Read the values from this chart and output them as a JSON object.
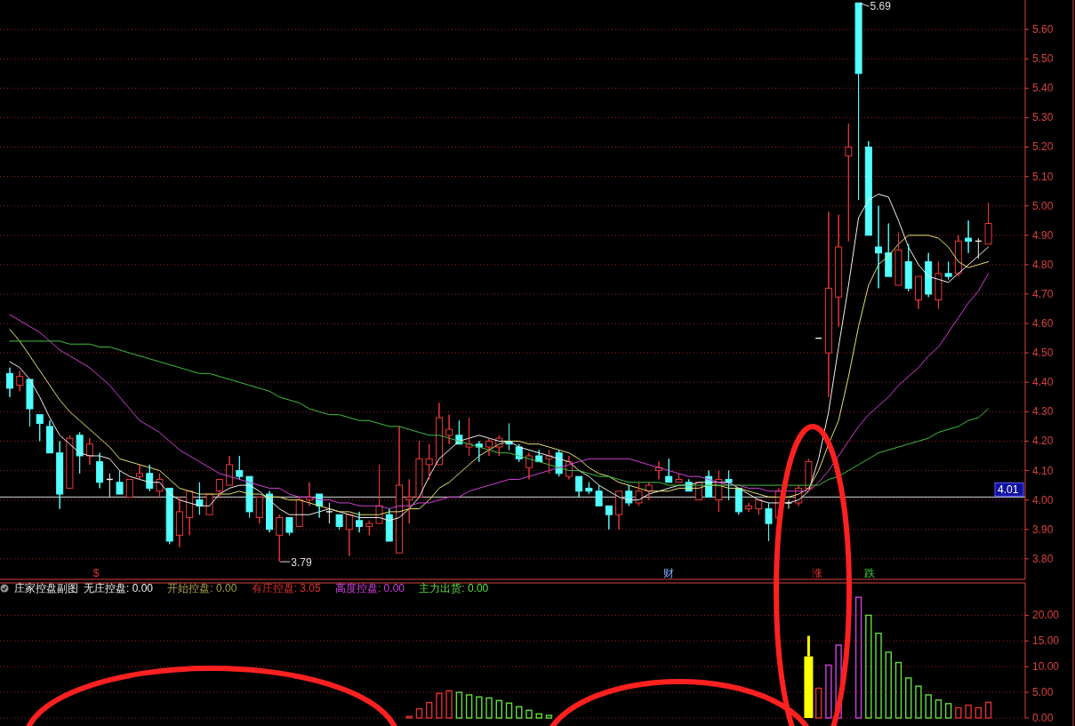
{
  "chart_data": [
    {
      "type": "candlestick",
      "categories": [
        null,
        null,
        null,
        null,
        null,
        null,
        null,
        null,
        null,
        null,
        null,
        null,
        null,
        null,
        null,
        null,
        null,
        null,
        null,
        null,
        null,
        null,
        null,
        null,
        null,
        null,
        null,
        null,
        null,
        null,
        null,
        null,
        null,
        null,
        null,
        null,
        null,
        null,
        null,
        null,
        null,
        null,
        null,
        null,
        null,
        null,
        null,
        null,
        null,
        null,
        null,
        null,
        null,
        null,
        null,
        null,
        null,
        null,
        null,
        null,
        null,
        null,
        null,
        null,
        null,
        null,
        null,
        null,
        null,
        null,
        null,
        null,
        null,
        null,
        null,
        null,
        null,
        null,
        null,
        null,
        null,
        null,
        null,
        null,
        null,
        null,
        null,
        null,
        null,
        null,
        null,
        null,
        null,
        null,
        null,
        null,
        null,
        null,
        null
      ],
      "ohlc": [
        [
          4.43,
          4.45,
          4.35,
          4.38
        ],
        [
          4.39,
          4.44,
          4.37,
          4.42
        ],
        [
          4.41,
          4.41,
          4.25,
          4.31
        ],
        [
          4.29,
          4.29,
          4.2,
          4.26
        ],
        [
          4.25,
          4.27,
          4.16,
          4.16
        ],
        [
          4.16,
          4.2,
          3.97,
          4.02
        ],
        [
          4.04,
          4.22,
          4.04,
          4.21
        ],
        [
          4.22,
          4.23,
          4.09,
          4.15
        ],
        [
          4.15,
          4.21,
          4.12,
          4.19
        ],
        [
          4.13,
          4.16,
          4.04,
          4.06
        ],
        [
          4.07,
          4.09,
          4.01,
          4.07
        ],
        [
          4.06,
          4.1,
          4.02,
          4.02
        ],
        [
          4.01,
          4.07,
          4.01,
          4.07
        ],
        [
          4.08,
          4.12,
          4.07,
          4.09
        ],
        [
          4.09,
          4.12,
          4.03,
          4.04
        ],
        [
          4.03,
          4.09,
          4.01,
          4.07
        ],
        [
          4.04,
          4.04,
          3.85,
          3.86
        ],
        [
          3.88,
          4.01,
          3.84,
          3.96
        ],
        [
          3.94,
          4.03,
          3.88,
          4.03
        ],
        [
          4.0,
          4.06,
          3.95,
          3.98
        ],
        [
          3.95,
          4.02,
          3.95,
          4.02
        ],
        [
          4.03,
          4.07,
          4.01,
          4.07
        ],
        [
          4.05,
          4.15,
          4.05,
          4.12
        ],
        [
          4.1,
          4.15,
          4.07,
          4.08
        ],
        [
          4.08,
          4.08,
          3.94,
          3.96
        ],
        [
          3.94,
          4.01,
          3.92,
          4.01
        ],
        [
          4.02,
          4.03,
          3.89,
          3.9
        ],
        [
          3.88,
          3.95,
          3.79,
          3.94
        ],
        [
          3.94,
          3.94,
          3.88,
          3.89
        ],
        [
          3.91,
          4.01,
          3.91,
          4.0
        ],
        [
          4.0,
          4.06,
          3.98,
          4.01
        ],
        [
          4.02,
          4.02,
          3.94,
          3.98
        ],
        [
          3.96,
          3.99,
          3.92,
          3.96
        ],
        [
          3.95,
          3.95,
          3.9,
          3.91
        ],
        [
          3.9,
          3.95,
          3.81,
          3.95
        ],
        [
          3.93,
          3.96,
          3.89,
          3.91
        ],
        [
          3.91,
          3.93,
          3.88,
          3.92
        ],
        [
          3.92,
          4.12,
          3.92,
          3.98
        ],
        [
          3.95,
          3.97,
          3.86,
          3.86
        ],
        [
          3.82,
          4.25,
          3.82,
          4.05
        ],
        [
          4.0,
          4.07,
          3.92,
          4.01
        ],
        [
          4.01,
          4.2,
          4.01,
          4.14
        ],
        [
          4.12,
          4.19,
          4.07,
          4.14
        ],
        [
          4.12,
          4.33,
          4.12,
          4.28
        ],
        [
          4.22,
          4.29,
          4.19,
          4.24
        ],
        [
          4.22,
          4.27,
          4.19,
          4.19
        ],
        [
          4.18,
          4.28,
          4.15,
          4.19
        ],
        [
          4.19,
          4.2,
          4.13,
          4.18
        ],
        [
          4.18,
          4.21,
          4.15,
          4.2
        ],
        [
          4.18,
          4.22,
          4.15,
          4.21
        ],
        [
          4.2,
          4.26,
          4.17,
          4.19
        ],
        [
          4.18,
          4.19,
          4.13,
          4.14
        ],
        [
          4.11,
          4.16,
          4.07,
          4.15
        ],
        [
          4.15,
          4.17,
          4.13,
          4.13
        ],
        [
          4.14,
          4.17,
          4.09,
          4.15
        ],
        [
          4.16,
          4.17,
          4.08,
          4.09
        ],
        [
          4.08,
          4.15,
          4.07,
          4.13
        ],
        [
          4.08,
          4.08,
          4.01,
          4.03
        ],
        [
          4.04,
          4.06,
          4.02,
          4.03
        ],
        [
          4.03,
          4.05,
          3.98,
          3.98
        ],
        [
          3.98,
          3.98,
          3.9,
          3.95
        ],
        [
          3.95,
          4.03,
          3.9,
          4.03
        ],
        [
          4.03,
          4.05,
          3.98,
          3.99
        ],
        [
          3.99,
          4.06,
          3.98,
          4.03
        ],
        [
          4.03,
          4.06,
          4.0,
          4.05
        ],
        [
          4.1,
          4.13,
          4.07,
          4.11
        ],
        [
          4.08,
          4.14,
          4.06,
          4.06
        ],
        [
          4.06,
          4.09,
          4.06,
          4.07
        ],
        [
          4.06,
          4.07,
          4.03,
          4.03
        ],
        [
          4.0,
          4.06,
          4.0,
          4.06
        ],
        [
          4.08,
          4.1,
          4.01,
          4.01
        ],
        [
          4.0,
          4.1,
          3.96,
          4.07
        ],
        [
          4.07,
          4.1,
          4.0,
          4.06
        ],
        [
          4.04,
          4.04,
          3.95,
          3.96
        ],
        [
          3.97,
          3.99,
          3.96,
          3.98
        ],
        [
          3.97,
          4.0,
          3.95,
          4.0
        ],
        [
          3.97,
          3.99,
          3.86,
          3.92
        ],
        [
          3.94,
          4.04,
          3.94,
          4.03
        ],
        [
          3.99,
          4.0,
          3.97,
          3.99
        ],
        [
          3.99,
          4.05,
          3.98,
          4.04
        ],
        [
          4.04,
          4.14,
          4.03,
          4.13
        ],
        [
          4.55,
          4.55,
          4.55,
          4.55
        ],
        [
          4.5,
          4.98,
          4.35,
          4.72
        ],
        [
          4.69,
          4.97,
          4.59,
          4.86
        ],
        [
          5.17,
          5.28,
          4.88,
          5.2
        ],
        [
          5.69,
          5.69,
          5.02,
          5.45
        ],
        [
          5.2,
          5.22,
          4.9,
          4.9
        ],
        [
          4.86,
          5.0,
          4.72,
          4.84
        ],
        [
          4.84,
          4.94,
          4.76,
          4.76
        ],
        [
          4.73,
          4.91,
          4.73,
          4.85
        ],
        [
          4.81,
          4.87,
          4.71,
          4.72
        ],
        [
          4.68,
          4.76,
          4.65,
          4.76
        ],
        [
          4.81,
          4.84,
          4.69,
          4.7
        ],
        [
          4.68,
          4.81,
          4.65,
          4.77
        ],
        [
          4.77,
          4.81,
          4.75,
          4.76
        ],
        [
          4.77,
          4.9,
          4.76,
          4.88
        ],
        [
          4.89,
          4.95,
          4.84,
          4.88
        ],
        [
          4.88,
          4.89,
          4.82,
          4.88
        ],
        [
          4.87,
          5.01,
          4.87,
          4.94
        ]
      ],
      "series": [
        {
          "type": "line",
          "color": "#f0f0f0",
          "values": [
            4.47,
            4.45,
            4.41,
            4.35,
            4.28,
            4.22,
            4.19,
            4.16,
            4.15,
            4.15,
            4.14,
            4.1,
            4.08,
            4.07,
            4.06,
            4.06,
            4.02,
            4.0,
            3.99,
            3.98,
            3.98,
            4.02,
            4.04,
            4.05,
            4.05,
            4.03,
            4.0,
            3.97,
            3.95,
            3.95,
            3.95,
            3.96,
            3.97,
            3.96,
            3.95,
            3.94,
            3.94,
            3.94,
            3.93,
            3.94,
            3.97,
            4.01,
            4.08,
            4.14,
            4.17,
            4.2,
            4.21,
            4.22,
            4.21,
            4.2,
            4.2,
            4.18,
            4.17,
            4.16,
            4.15,
            4.14,
            4.13,
            4.1,
            4.08,
            4.05,
            4.03,
            4.01,
            4.0,
            4.0,
            4.02,
            4.03,
            4.04,
            4.05,
            4.05,
            4.06,
            4.06,
            4.06,
            4.06,
            4.04,
            4.02,
            4.0,
            3.99,
            3.99,
            3.99,
            4.0,
            4.03,
            4.14,
            4.3,
            4.52,
            4.73,
            4.96,
            5.02,
            5.04,
            5.03,
            4.95,
            4.86,
            4.8,
            4.76,
            4.75,
            4.74,
            4.77,
            4.8,
            4.83,
            4.86
          ]
        },
        {
          "type": "line",
          "color": "#e8e070",
          "values": [
            4.58,
            4.54,
            4.49,
            4.44,
            4.39,
            4.34,
            4.3,
            4.27,
            4.24,
            4.21,
            4.18,
            4.14,
            4.13,
            4.12,
            4.11,
            4.1,
            4.07,
            4.04,
            4.03,
            4.02,
            4.02,
            4.02,
            4.02,
            4.03,
            4.02,
            4.02,
            4.01,
            4.01,
            4.0,
            4.0,
            3.99,
            3.98,
            3.97,
            3.96,
            3.96,
            3.95,
            3.95,
            3.95,
            3.96,
            3.96,
            3.97,
            3.97,
            4.0,
            4.04,
            4.06,
            4.09,
            4.12,
            4.15,
            4.17,
            4.19,
            4.2,
            4.2,
            4.19,
            4.19,
            4.18,
            4.17,
            4.16,
            4.14,
            4.11,
            4.09,
            4.08,
            4.06,
            4.05,
            4.04,
            4.03,
            4.03,
            4.03,
            4.04,
            4.04,
            4.04,
            4.05,
            4.05,
            4.04,
            4.04,
            4.03,
            4.02,
            4.01,
            4.01,
            4.01,
            4.02,
            4.04,
            4.1,
            4.19,
            4.27,
            4.42,
            4.59,
            4.73,
            4.8,
            4.83,
            4.87,
            4.9,
            4.9,
            4.9,
            4.89,
            4.86,
            4.81,
            4.79,
            4.8,
            4.81
          ]
        },
        {
          "type": "line",
          "color": "#d040d8",
          "values": [
            4.63,
            4.61,
            4.59,
            4.57,
            4.54,
            4.51,
            4.49,
            4.47,
            4.45,
            4.42,
            4.39,
            4.35,
            4.31,
            4.27,
            4.25,
            4.23,
            4.2,
            4.17,
            4.15,
            4.13,
            4.11,
            4.09,
            4.08,
            4.07,
            4.06,
            4.05,
            4.04,
            4.04,
            4.02,
            4.01,
            4.01,
            4.0,
            4.0,
            3.99,
            3.99,
            3.98,
            3.98,
            3.98,
            3.97,
            3.98,
            3.98,
            3.99,
            3.99,
            4.0,
            4.01,
            4.01,
            4.03,
            4.04,
            4.05,
            4.06,
            4.07,
            4.07,
            4.08,
            4.09,
            4.1,
            4.11,
            4.12,
            4.13,
            4.14,
            4.14,
            4.14,
            4.14,
            4.14,
            4.13,
            4.12,
            4.11,
            4.1,
            4.09,
            4.08,
            4.08,
            4.07,
            4.06,
            4.05,
            4.05,
            4.04,
            4.04,
            4.03,
            4.03,
            4.03,
            4.03,
            4.03,
            4.06,
            4.1,
            4.15,
            4.2,
            4.25,
            4.29,
            4.32,
            4.35,
            4.39,
            4.42,
            4.45,
            4.49,
            4.52,
            4.57,
            4.62,
            4.67,
            4.71,
            4.77
          ]
        },
        {
          "type": "line",
          "color": "#40c040",
          "values": [
            4.54,
            4.54,
            4.54,
            4.54,
            4.54,
            4.54,
            4.53,
            4.53,
            4.53,
            4.52,
            4.52,
            4.51,
            4.5,
            4.49,
            4.48,
            4.47,
            4.46,
            4.45,
            4.44,
            4.43,
            4.43,
            4.42,
            4.41,
            4.4,
            4.39,
            4.38,
            4.37,
            4.35,
            4.34,
            4.33,
            4.31,
            4.3,
            4.29,
            4.29,
            4.28,
            4.27,
            4.27,
            4.26,
            4.25,
            4.25,
            4.24,
            4.23,
            4.22,
            4.22,
            4.21,
            4.2,
            4.19,
            4.18,
            4.17,
            4.16,
            4.16,
            4.15,
            4.14,
            4.13,
            4.12,
            4.11,
            4.1,
            4.1,
            4.09,
            4.08,
            4.08,
            4.07,
            4.06,
            4.06,
            4.06,
            4.06,
            4.05,
            4.05,
            4.05,
            4.05,
            4.05,
            4.05,
            4.05,
            4.05,
            4.05,
            4.05,
            4.05,
            4.05,
            4.05,
            4.05,
            4.05,
            4.05,
            4.07,
            4.08,
            4.1,
            4.12,
            4.14,
            4.16,
            4.17,
            4.18,
            4.19,
            4.2,
            4.21,
            4.23,
            4.24,
            4.25,
            4.27,
            4.28,
            4.31
          ]
        }
      ],
      "ylim": [
        3.73,
        5.7
      ],
      "yticks": [
        {
          "value": 3.8,
          "label": "3.80"
        },
        {
          "value": 3.9,
          "label": "3.90"
        },
        {
          "value": 4.0,
          "label": "4.00"
        },
        {
          "value": 4.1,
          "label": "4.10"
        },
        {
          "value": 4.2,
          "label": "4.20"
        },
        {
          "value": 4.3,
          "label": "4.30"
        },
        {
          "value": 4.4,
          "label": "4.40"
        },
        {
          "value": 4.5,
          "label": "4.50"
        },
        {
          "value": 4.6,
          "label": "4.60"
        },
        {
          "value": 4.7,
          "label": "4.70"
        },
        {
          "value": 4.8,
          "label": "4.80"
        },
        {
          "value": 4.9,
          "label": "4.90"
        },
        {
          "value": 5.0,
          "label": "5.00"
        },
        {
          "value": 5.1,
          "label": "5.10"
        },
        {
          "value": 5.2,
          "label": "5.20"
        },
        {
          "value": 5.3,
          "label": "5.30"
        },
        {
          "value": 5.4,
          "label": "5.40"
        },
        {
          "value": 5.5,
          "label": "5.50"
        },
        {
          "value": 5.6,
          "label": "5.60"
        }
      ],
      "grid": "y",
      "tick_labels": "y",
      "ref_lines": [
        {
          "axis": "y",
          "value": 4.01,
          "label": "4.01",
          "color": "#d8d8d8"
        }
      ],
      "annotations": [
        "5.69",
        "3.79",
        "$",
        "财",
        "涨",
        "跌"
      ]
    },
    {
      "type": "bar",
      "title": "庄家控盘副图",
      "categories": [
        null,
        null,
        null,
        null,
        null,
        null,
        null,
        null,
        null,
        null,
        null,
        null,
        null,
        null,
        null,
        null,
        null,
        null,
        null,
        null,
        null,
        null,
        null,
        null,
        null,
        null,
        null,
        null,
        null,
        null,
        null,
        null,
        null,
        null,
        null,
        null,
        null,
        null,
        null,
        null,
        null,
        null,
        null,
        null,
        null,
        null,
        null,
        null,
        null,
        null,
        null,
        null,
        null,
        null,
        null,
        null,
        null,
        null,
        null,
        null,
        null,
        null,
        null,
        null,
        null,
        null,
        null,
        null,
        null,
        null,
        null,
        null,
        null,
        null,
        null,
        null,
        null,
        null,
        null,
        null,
        null,
        null,
        null,
        null,
        null,
        null,
        null,
        null,
        null,
        null,
        null,
        null,
        null,
        null,
        null,
        null,
        null,
        null,
        null
      ],
      "series": [
        {
          "name": "无庄控盘: 0.00",
          "color": "#f0f0f0",
          "values": [
            null,
            null,
            null,
            null,
            null,
            null,
            null,
            null,
            null,
            null,
            null,
            null,
            null,
            null,
            null,
            null,
            null,
            null,
            null,
            null,
            null,
            null,
            null,
            null,
            null,
            null,
            null,
            null,
            null,
            null,
            null,
            null,
            null,
            null,
            null,
            null,
            null,
            null,
            null,
            null,
            null,
            null,
            null,
            null,
            null,
            null,
            null,
            null,
            null,
            null,
            null,
            null,
            null,
            null,
            null,
            null,
            null,
            null,
            null,
            null,
            null,
            null,
            null,
            null,
            null,
            null,
            null,
            null,
            null,
            null,
            null,
            null,
            null,
            null,
            null,
            null,
            null,
            null,
            null,
            null,
            null,
            null,
            null,
            null,
            null,
            null,
            null,
            null,
            null,
            null,
            null,
            null,
            null,
            null,
            null,
            null,
            null,
            null,
            0
          ]
        },
        {
          "name": "开始控盘: 0.00",
          "color": "#a8a050",
          "values": [
            null,
            null,
            null,
            null,
            null,
            null,
            null,
            null,
            null,
            null,
            null,
            null,
            null,
            null,
            null,
            null,
            null,
            null,
            null,
            null,
            null,
            null,
            null,
            null,
            null,
            null,
            null,
            null,
            null,
            null,
            null,
            null,
            null,
            null,
            null,
            null,
            null,
            null,
            null,
            null,
            null,
            null,
            null,
            null,
            null,
            null,
            null,
            null,
            null,
            null,
            null,
            null,
            null,
            null,
            null,
            null,
            null,
            null,
            null,
            null,
            null,
            null,
            null,
            null,
            null,
            null,
            null,
            null,
            null,
            null,
            null,
            null,
            null,
            null,
            null,
            null,
            null,
            null,
            null,
            null,
            null,
            null,
            null,
            null,
            null,
            null,
            null,
            null,
            null,
            null,
            null,
            null,
            null,
            null,
            null,
            null,
            null,
            null,
            0
          ]
        },
        {
          "name": "有庄控盘: 3.05",
          "color": "#e03030",
          "values": [
            null,
            null,
            null,
            null,
            null,
            null,
            null,
            null,
            null,
            null,
            null,
            null,
            null,
            null,
            null,
            null,
            null,
            null,
            null,
            null,
            null,
            null,
            null,
            null,
            null,
            null,
            null,
            null,
            null,
            null,
            null,
            null,
            null,
            null,
            null,
            null,
            null,
            null,
            null,
            null,
            0.3,
            1.8,
            3.0,
            4.8,
            5.3,
            null,
            null,
            null,
            null,
            null,
            null,
            null,
            null,
            null,
            null,
            null,
            null,
            null,
            null,
            null,
            null,
            null,
            null,
            null,
            null,
            null,
            null,
            null,
            null,
            null,
            null,
            null,
            null,
            null,
            null,
            null,
            null,
            null,
            null,
            null,
            null,
            5.8,
            null,
            null,
            null,
            null,
            null,
            null,
            null,
            null,
            null,
            null,
            null,
            null,
            null,
            2.0,
            2.5,
            2.0,
            3.05
          ]
        },
        {
          "name": "高度控盘: 0.00",
          "color": "#d040e0",
          "values": [
            null,
            null,
            null,
            null,
            null,
            null,
            null,
            null,
            null,
            null,
            null,
            null,
            null,
            null,
            null,
            null,
            null,
            null,
            null,
            null,
            null,
            null,
            null,
            null,
            null,
            null,
            null,
            null,
            null,
            null,
            null,
            null,
            null,
            null,
            null,
            null,
            null,
            null,
            null,
            null,
            null,
            null,
            null,
            null,
            null,
            null,
            null,
            null,
            null,
            null,
            null,
            null,
            null,
            null,
            null,
            null,
            null,
            null,
            null,
            null,
            null,
            null,
            null,
            null,
            null,
            null,
            null,
            null,
            null,
            null,
            null,
            null,
            null,
            null,
            null,
            null,
            null,
            null,
            null,
            null,
            null,
            null,
            10.3,
            14.2,
            null,
            23.5,
            null,
            null,
            null,
            null,
            null,
            null,
            null,
            null,
            null,
            null,
            null,
            null,
            0
          ]
        },
        {
          "name": "主力出货: 0.00",
          "color": "#60e040",
          "values": [
            null,
            null,
            null,
            null,
            null,
            null,
            null,
            null,
            null,
            null,
            null,
            null,
            null,
            null,
            null,
            null,
            null,
            null,
            null,
            null,
            null,
            null,
            null,
            null,
            null,
            null,
            null,
            null,
            null,
            null,
            null,
            null,
            null,
            null,
            null,
            null,
            null,
            null,
            null,
            null,
            null,
            null,
            null,
            null,
            null,
            5.0,
            4.5,
            4.1,
            3.9,
            3.4,
            2.9,
            2.2,
            1.5,
            0.8,
            0.5,
            null,
            null,
            null,
            null,
            null,
            null,
            null,
            null,
            null,
            null,
            null,
            null,
            null,
            null,
            null,
            null,
            null,
            null,
            null,
            null,
            null,
            null,
            null,
            null,
            null,
            null,
            null,
            null,
            null,
            null,
            null,
            20.0,
            16.5,
            12.8,
            10.8,
            7.8,
            6.2,
            4.5,
            3.5,
            2.8,
            null,
            null,
            null,
            0
          ]
        },
        {
          "color": "#ffff00",
          "values": [
            null,
            null,
            null,
            null,
            null,
            null,
            null,
            null,
            null,
            null,
            null,
            null,
            null,
            null,
            null,
            null,
            null,
            null,
            null,
            null,
            null,
            null,
            null,
            null,
            null,
            null,
            null,
            null,
            null,
            null,
            null,
            null,
            null,
            null,
            null,
            null,
            null,
            null,
            null,
            null,
            null,
            null,
            null,
            null,
            null,
            null,
            null,
            null,
            null,
            null,
            null,
            null,
            null,
            null,
            null,
            null,
            null,
            null,
            null,
            null,
            null,
            null,
            null,
            null,
            null,
            null,
            null,
            null,
            null,
            null,
            null,
            null,
            null,
            null,
            null,
            null,
            null,
            null,
            null,
            null,
            12,
            null,
            null,
            null,
            null,
            null,
            null,
            null,
            null,
            null,
            null,
            null,
            null,
            null,
            null,
            null,
            null,
            null,
            null
          ],
          "errors": [
            null,
            null,
            null,
            null,
            null,
            null,
            null,
            null,
            null,
            null,
            null,
            null,
            null,
            null,
            null,
            null,
            null,
            null,
            null,
            null,
            null,
            null,
            null,
            null,
            null,
            null,
            null,
            null,
            null,
            null,
            null,
            null,
            null,
            null,
            null,
            null,
            null,
            null,
            null,
            null,
            null,
            null,
            null,
            null,
            null,
            null,
            null,
            null,
            null,
            null,
            null,
            null,
            null,
            null,
            null,
            null,
            null,
            null,
            null,
            null,
            null,
            null,
            null,
            null,
            null,
            null,
            null,
            null,
            null,
            null,
            null,
            null,
            null,
            null,
            null,
            null,
            null,
            null,
            null,
            null,
            [
              12,
              16
            ],
            null,
            null,
            null,
            null,
            null,
            null,
            null,
            null,
            null,
            null,
            null,
            null,
            null,
            null,
            null,
            null,
            null,
            null
          ]
        }
      ],
      "ylim": [
        0,
        26.3
      ],
      "yticks": [
        {
          "value": 0,
          "label": "0.00"
        },
        {
          "value": 5,
          "label": "5.00"
        },
        {
          "value": 10,
          "label": "10.00"
        },
        {
          "value": 15,
          "label": "15.00"
        },
        {
          "value": 20,
          "label": "20.00"
        }
      ],
      "grid": "y",
      "legend": "top left",
      "tick_labels": "y"
    }
  ]
}
